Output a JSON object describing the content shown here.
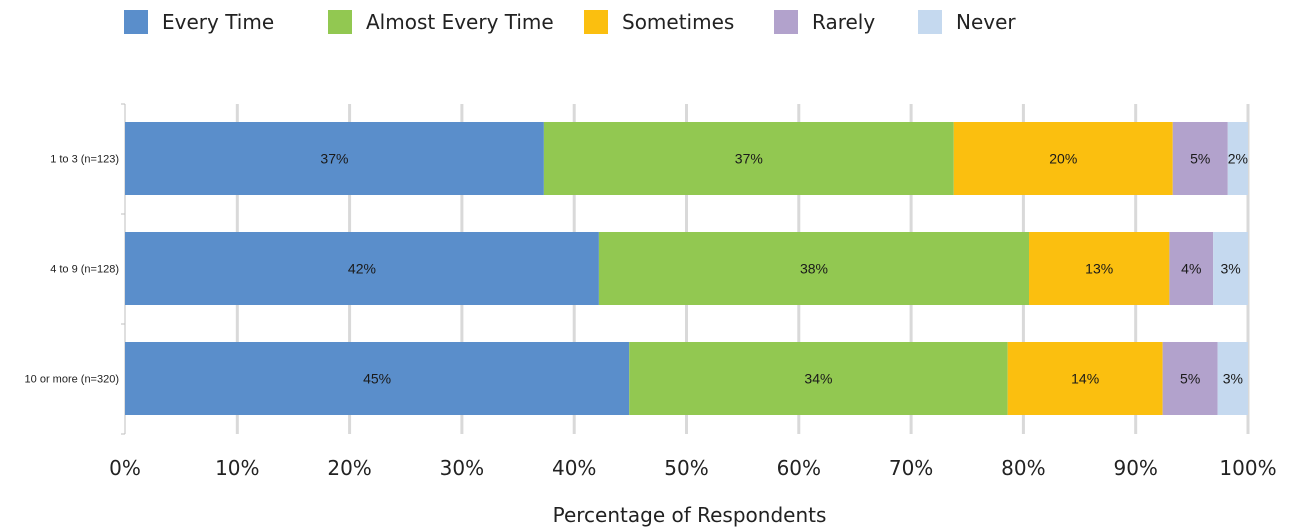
{
  "chart_data": {
    "type": "bar",
    "orientation": "horizontal",
    "stacked": true,
    "categories": [
      "1 to 3 (n=123)",
      "4 to 9 (n=128)",
      "10 or more (n=320)"
    ],
    "series": [
      {
        "name": "Every Time",
        "color": "#5a8ecb",
        "values": [
          37.3,
          42.2,
          44.9
        ],
        "labels": [
          "37%",
          "42%",
          "45%"
        ]
      },
      {
        "name": "Almost Every Time",
        "color": "#92c851",
        "values": [
          36.5,
          38.3,
          33.7
        ],
        "labels": [
          "37%",
          "38%",
          "34%"
        ]
      },
      {
        "name": "Sometimes",
        "color": "#fbbf0f",
        "values": [
          19.5,
          12.5,
          13.8
        ],
        "labels": [
          "20%",
          "13%",
          "14%"
        ]
      },
      {
        "name": "Rarely",
        "color": "#b2a2cc",
        "values": [
          4.9,
          3.9,
          4.9
        ],
        "labels": [
          "5%",
          "4%",
          "5%"
        ]
      },
      {
        "name": "Never",
        "color": "#c5d9ef",
        "values": [
          1.8,
          3.1,
          2.7
        ],
        "labels": [
          "2%",
          "3%",
          "3%"
        ]
      }
    ],
    "xlabel": "Percentage of Respondents",
    "xlim": [
      0,
      100
    ],
    "xticks": [
      "0%",
      "10%",
      "20%",
      "30%",
      "40%",
      "50%",
      "60%",
      "70%",
      "80%",
      "90%",
      "100%"
    ],
    "grid": true,
    "legend_position": "top"
  }
}
